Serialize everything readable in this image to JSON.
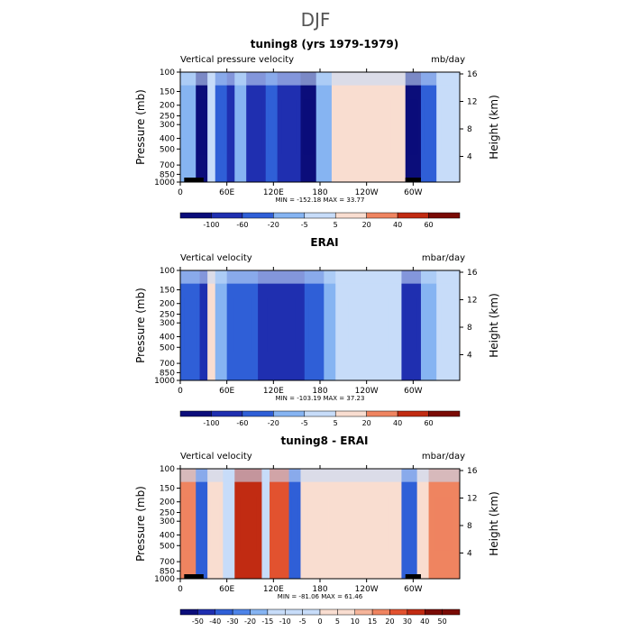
{
  "figure_title": "DJF",
  "colors": {
    "dark_navy": "#0b0d7a",
    "navy": "#1f2fb0",
    "blue": "#2f5fd7",
    "mid_blue": "#4d84e8",
    "light_blue": "#86b4f2",
    "pale_blue": "#c7dcf9",
    "pale_orange": "#f9ddd0",
    "light_orange": "#f5b49a",
    "orange": "#ef8460",
    "red_orange": "#e2522f",
    "red": "#c12b12",
    "dark_red": "#7a0b05"
  },
  "panels": [
    {
      "title": "tuning8 (yrs 1979-1979)",
      "variable": "Vertical pressure velocity",
      "units": "mb/day",
      "minmax": "MIN = -152.18   MAX =  33.77",
      "y_left_title": "Pressure (mb)",
      "y_right_title": "Height (km)",
      "colorbar_labels": [
        "-100",
        "-60",
        "-20",
        "-5",
        "5",
        "20",
        "40",
        "60"
      ]
    },
    {
      "title": "ERAI",
      "variable": "Vertical velocity",
      "units": "mbar/day",
      "minmax": "MIN = -103.19   MAX =  37.23",
      "y_left_title": "Pressure (mb)",
      "y_right_title": "Height (km)",
      "colorbar_labels": [
        "-100",
        "-60",
        "-20",
        "-5",
        "5",
        "20",
        "40",
        "60"
      ]
    },
    {
      "title": "tuning8 - ERAI",
      "variable": "Vertical velocity",
      "units": "mbar/day",
      "minmax": "MIN = -81.06   MAX =  61.46",
      "y_left_title": "Pressure (mb)",
      "y_right_title": "Height (km)",
      "colorbar_labels": [
        "-50",
        "-40",
        "-30",
        "-20",
        "-15",
        "-10",
        "-5",
        "0",
        "5",
        "10",
        "15",
        "20",
        "30",
        "40",
        "50"
      ]
    }
  ],
  "chart_data": [
    {
      "type": "heatmap",
      "title": "tuning8 (yrs 1979-1979)",
      "xlabel": "",
      "ylabel": "Pressure (mb)",
      "y2label": "Height (km)",
      "x_ticks": [
        "0",
        "60E",
        "120E",
        "180",
        "120W",
        "60W"
      ],
      "y_ticks": [
        "100",
        "150",
        "200",
        "250",
        "300",
        "400",
        "500",
        "700",
        "850",
        "1000"
      ],
      "y2_ticks": [
        "16",
        "12",
        "8",
        "4"
      ],
      "min": -152.18,
      "max": 33.77,
      "bands": [
        {
          "lon_start": 0,
          "lon_end": 20,
          "value": -5
        },
        {
          "lon_start": 20,
          "lon_end": 35,
          "value": -100
        },
        {
          "lon_start": 35,
          "lon_end": 45,
          "value": 5
        },
        {
          "lon_start": 45,
          "lon_end": 60,
          "value": -20
        },
        {
          "lon_start": 60,
          "lon_end": 70,
          "value": -60
        },
        {
          "lon_start": 70,
          "lon_end": 85,
          "value": -5
        },
        {
          "lon_start": 85,
          "lon_end": 110,
          "value": -60
        },
        {
          "lon_start": 110,
          "lon_end": 125,
          "value": -20
        },
        {
          "lon_start": 125,
          "lon_end": 155,
          "value": -60
        },
        {
          "lon_start": 155,
          "lon_end": 175,
          "value": -100
        },
        {
          "lon_start": 175,
          "lon_end": 195,
          "value": -5
        },
        {
          "lon_start": 195,
          "lon_end": 290,
          "value": 20
        },
        {
          "lon_start": 290,
          "lon_end": 310,
          "value": -100
        },
        {
          "lon_start": 310,
          "lon_end": 330,
          "value": -20
        },
        {
          "lon_start": 330,
          "lon_end": 360,
          "value": 5
        }
      ]
    },
    {
      "type": "heatmap",
      "title": "ERAI",
      "xlabel": "",
      "ylabel": "Pressure (mb)",
      "y2label": "Height (km)",
      "x_ticks": [
        "0",
        "60E",
        "120E",
        "180",
        "120W",
        "60W"
      ],
      "y_ticks": [
        "100",
        "150",
        "200",
        "250",
        "300",
        "400",
        "500",
        "700",
        "850",
        "1000"
      ],
      "y2_ticks": [
        "16",
        "12",
        "8",
        "4"
      ],
      "min": -103.19,
      "max": 37.23,
      "bands": [
        {
          "lon_start": 0,
          "lon_end": 25,
          "value": -20
        },
        {
          "lon_start": 25,
          "lon_end": 35,
          "value": -60
        },
        {
          "lon_start": 35,
          "lon_end": 45,
          "value": 20
        },
        {
          "lon_start": 45,
          "lon_end": 60,
          "value": -5
        },
        {
          "lon_start": 60,
          "lon_end": 100,
          "value": -20
        },
        {
          "lon_start": 100,
          "lon_end": 160,
          "value": -60
        },
        {
          "lon_start": 160,
          "lon_end": 185,
          "value": -20
        },
        {
          "lon_start": 185,
          "lon_end": 200,
          "value": -5
        },
        {
          "lon_start": 200,
          "lon_end": 285,
          "value": 5
        },
        {
          "lon_start": 285,
          "lon_end": 310,
          "value": -60
        },
        {
          "lon_start": 310,
          "lon_end": 330,
          "value": -5
        },
        {
          "lon_start": 330,
          "lon_end": 360,
          "value": 5
        }
      ]
    },
    {
      "type": "heatmap",
      "title": "tuning8 - ERAI",
      "xlabel": "",
      "ylabel": "Pressure (mb)",
      "y2label": "Height (km)",
      "x_ticks": [
        "0",
        "60E",
        "120E",
        "180",
        "120W",
        "60W"
      ],
      "y_ticks": [
        "100",
        "150",
        "200",
        "250",
        "300",
        "400",
        "500",
        "700",
        "850",
        "1000"
      ],
      "y2_ticks": [
        "16",
        "12",
        "8",
        "4"
      ],
      "min": -81.06,
      "max": 61.46,
      "bands": [
        {
          "lon_start": 0,
          "lon_end": 20,
          "value": 20
        },
        {
          "lon_start": 20,
          "lon_end": 35,
          "value": -30
        },
        {
          "lon_start": 35,
          "lon_end": 55,
          "value": 10
        },
        {
          "lon_start": 55,
          "lon_end": 70,
          "value": -10
        },
        {
          "lon_start": 70,
          "lon_end": 105,
          "value": 40
        },
        {
          "lon_start": 105,
          "lon_end": 115,
          "value": -10
        },
        {
          "lon_start": 115,
          "lon_end": 140,
          "value": 30
        },
        {
          "lon_start": 140,
          "lon_end": 155,
          "value": -30
        },
        {
          "lon_start": 155,
          "lon_end": 200,
          "value": 10
        },
        {
          "lon_start": 200,
          "lon_end": 285,
          "value": 5
        },
        {
          "lon_start": 285,
          "lon_end": 305,
          "value": -30
        },
        {
          "lon_start": 305,
          "lon_end": 320,
          "value": 10
        },
        {
          "lon_start": 320,
          "lon_end": 360,
          "value": 20
        }
      ]
    }
  ]
}
